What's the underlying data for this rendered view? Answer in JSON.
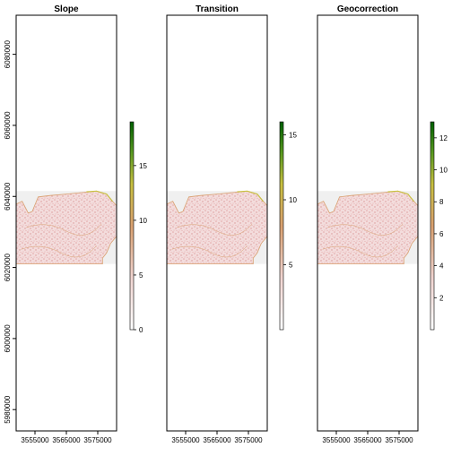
{
  "chart_data": [
    {
      "type": "heatmap",
      "title": "Slope",
      "xticks": [
        3555000,
        3565000,
        3575000
      ],
      "yticks": [
        5980000,
        6000000,
        6020000,
        6040000,
        6060000,
        6080000
      ],
      "xlim": [
        3549000,
        3581000
      ],
      "ylim": [
        5974000,
        6091000
      ],
      "raster_extent": {
        "x": [
          3549000,
          3581000
        ],
        "y": [
          6021000,
          6041500
        ]
      },
      "legend": {
        "range": [
          0,
          19
        ],
        "ticks": [
          0,
          5,
          10,
          15
        ]
      },
      "show_y_axis": true
    },
    {
      "type": "heatmap",
      "title": "Transition",
      "xticks": [
        3555000,
        3565000,
        3575000
      ],
      "xlim": [
        3549000,
        3581000
      ],
      "ylim": [
        5974000,
        6091000
      ],
      "raster_extent": {
        "x": [
          3549000,
          3581000
        ],
        "y": [
          6021000,
          6041500
        ]
      },
      "legend": {
        "range": [
          0,
          16
        ],
        "ticks": [
          5,
          10,
          15
        ]
      },
      "show_y_axis": false
    },
    {
      "type": "heatmap",
      "title": "Geocorrection",
      "xticks": [
        3555000,
        3565000,
        3575000
      ],
      "xlim": [
        3549000,
        3581000
      ],
      "ylim": [
        5974000,
        6091000
      ],
      "raster_extent": {
        "x": [
          3549000,
          3581000
        ],
        "y": [
          6021000,
          6041500
        ]
      },
      "legend": {
        "range": [
          0,
          13
        ],
        "ticks": [
          2,
          4,
          6,
          8,
          10,
          12
        ]
      },
      "show_y_axis": false
    }
  ],
  "colors": {
    "low": "#ffffff",
    "mid_low": "#e8b8b0",
    "mid": "#d9a070",
    "mid_high": "#c8c040",
    "high": "#006000",
    "na_background": "#f0f0f0"
  }
}
